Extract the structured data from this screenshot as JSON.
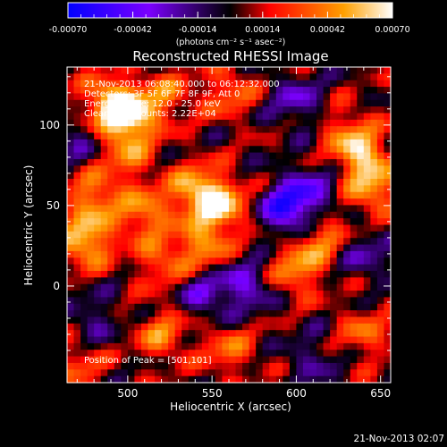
{
  "chart_data": {
    "type": "heatmap",
    "title": "Reconstructed RHESSI Image",
    "xlabel": "Heliocentric X (arcsec)",
    "ylabel": "Heliocentric Y (arcsec)",
    "xlim": [
      464,
      656
    ],
    "ylim": [
      -60,
      136
    ],
    "x_ticks": [
      "500",
      "550",
      "600",
      "650"
    ],
    "y_ticks": [
      "0",
      "50",
      "100"
    ],
    "colorbar": {
      "ticks": [
        "-0.00070",
        "-0.00042",
        "-0.00014",
        "0.00014",
        "0.00042",
        "0.00070"
      ],
      "unit_label": "(photons cm⁻² s⁻¹ asec⁻²)",
      "range": [
        -0.0007,
        0.0007
      ]
    },
    "annotations": [
      "21-Nov-2013 06:08:40.000 to 06:12:32.000",
      "Detectors: 3F 5F 6F 7F 8F 9F, Att 0",
      "Energy Range: 12.0 - 25.0 keV",
      "Clean     Total counts: 2.22E+04"
    ],
    "peak_label": "Position of Peak = [501,101]",
    "hotspots": [
      {
        "x": 500,
        "y": 105,
        "v": 0.0007
      },
      {
        "x": 488,
        "y": 115,
        "v": 0.00042
      },
      {
        "x": 522,
        "y": 118,
        "v": 0.0003
      },
      {
        "x": 480,
        "y": 55,
        "v": 0.0004
      },
      {
        "x": 475,
        "y": 28,
        "v": 0.00055
      },
      {
        "x": 510,
        "y": 45,
        "v": 0.0004
      },
      {
        "x": 540,
        "y": 60,
        "v": 0.00045
      },
      {
        "x": 555,
        "y": 50,
        "v": 0.00055
      },
      {
        "x": 545,
        "y": 25,
        "v": 0.0004
      },
      {
        "x": 600,
        "y": 10,
        "v": 0.0004
      },
      {
        "x": 615,
        "y": 30,
        "v": 0.00035
      },
      {
        "x": 640,
        "y": 80,
        "v": 0.00045
      },
      {
        "x": 645,
        "y": 60,
        "v": 0.0004
      },
      {
        "x": 630,
        "y": 95,
        "v": 0.0003
      },
      {
        "x": 560,
        "y": 120,
        "v": 0.0003
      },
      {
        "x": 520,
        "y": 15,
        "v": 0.0003
      },
      {
        "x": 520,
        "y": -30,
        "v": 0.00035
      },
      {
        "x": 560,
        "y": -40,
        "v": 0.0003
      },
      {
        "x": 640,
        "y": -30,
        "v": 0.0003
      },
      {
        "x": 470,
        "y": -50,
        "v": 0.00025
      },
      {
        "x": 500,
        "y": 80,
        "v": 0.0003
      }
    ],
    "coldspots": [
      {
        "x": 595,
        "y": 48,
        "v": -0.0006
      },
      {
        "x": 610,
        "y": 60,
        "v": -0.0003
      },
      {
        "x": 545,
        "y": -5,
        "v": -0.0003
      },
      {
        "x": 570,
        "y": 0,
        "v": -0.00035
      },
      {
        "x": 640,
        "y": 20,
        "v": -0.00025
      },
      {
        "x": 600,
        "y": 115,
        "v": -0.0003
      },
      {
        "x": 470,
        "y": 90,
        "v": -0.0002
      },
      {
        "x": 610,
        "y": -45,
        "v": -0.0002
      },
      {
        "x": 480,
        "y": -20,
        "v": -0.0002
      }
    ],
    "colors": {
      "min": "#0000ff",
      "low": "#7b00ff",
      "mid": "#000000",
      "high1": "#ff0000",
      "high2": "#ff8800",
      "max": "#ffffff"
    }
  },
  "timestamp": "21-Nov-2013 02:07"
}
